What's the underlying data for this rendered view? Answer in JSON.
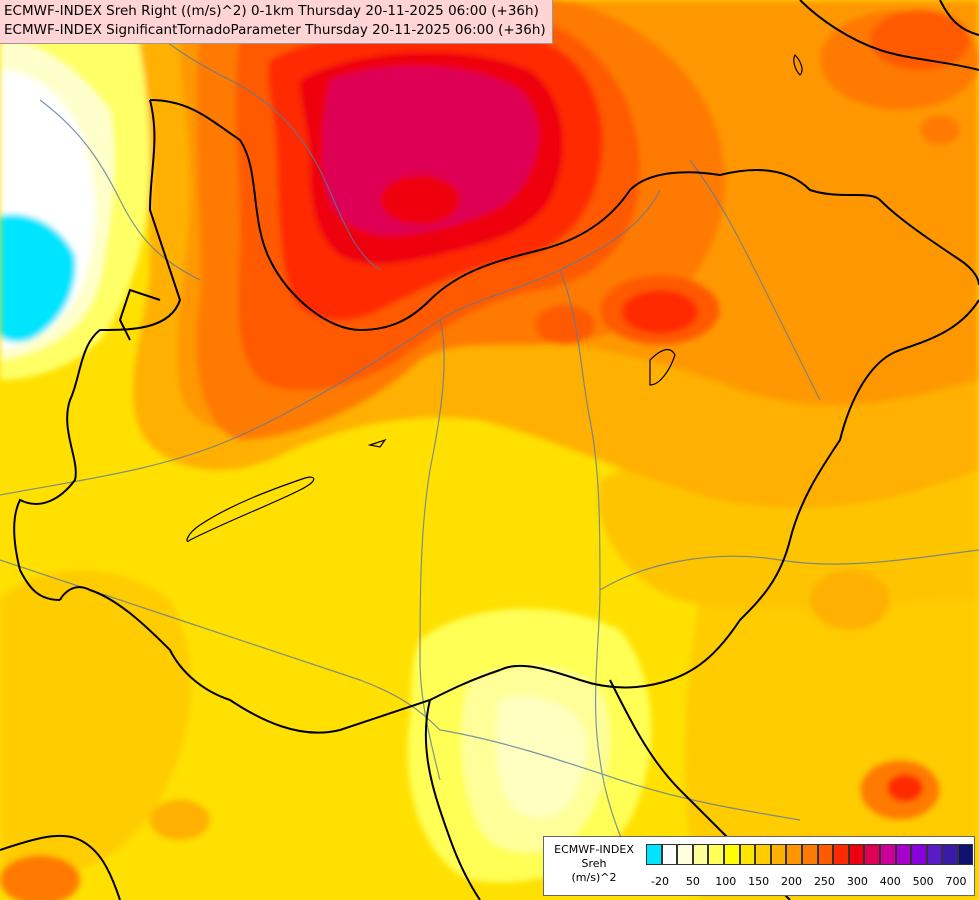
{
  "titles": {
    "line1": "ECMWF-INDEX Sreh Right ((m/s)^2) 0-1km Thursday 20-11-2025 06:00 (+36h)",
    "line2": "ECMWF-INDEX SignificantTornadoParameter Thursday 20-11-2025 06:00 (+36h)"
  },
  "legend": {
    "source": "ECMWF-INDEX",
    "variable": "Sreh",
    "unit": "(m/s)^2",
    "colors": [
      "#00e5ff",
      "#ffffff",
      "#ffffe0",
      "#ffff99",
      "#ffff55",
      "#ffff00",
      "#ffe500",
      "#ffcc00",
      "#ffb000",
      "#ff9600",
      "#ff7a00",
      "#ff5a00",
      "#ff2a00",
      "#ee0010",
      "#dd0055",
      "#cc0099",
      "#aa00cc",
      "#8800dd",
      "#5a1ac8",
      "#3a1aa8",
      "#101070"
    ],
    "tick_labels": [
      "-20",
      "50",
      "100",
      "150",
      "200",
      "250",
      "300",
      "400",
      "500",
      "700"
    ]
  }
}
